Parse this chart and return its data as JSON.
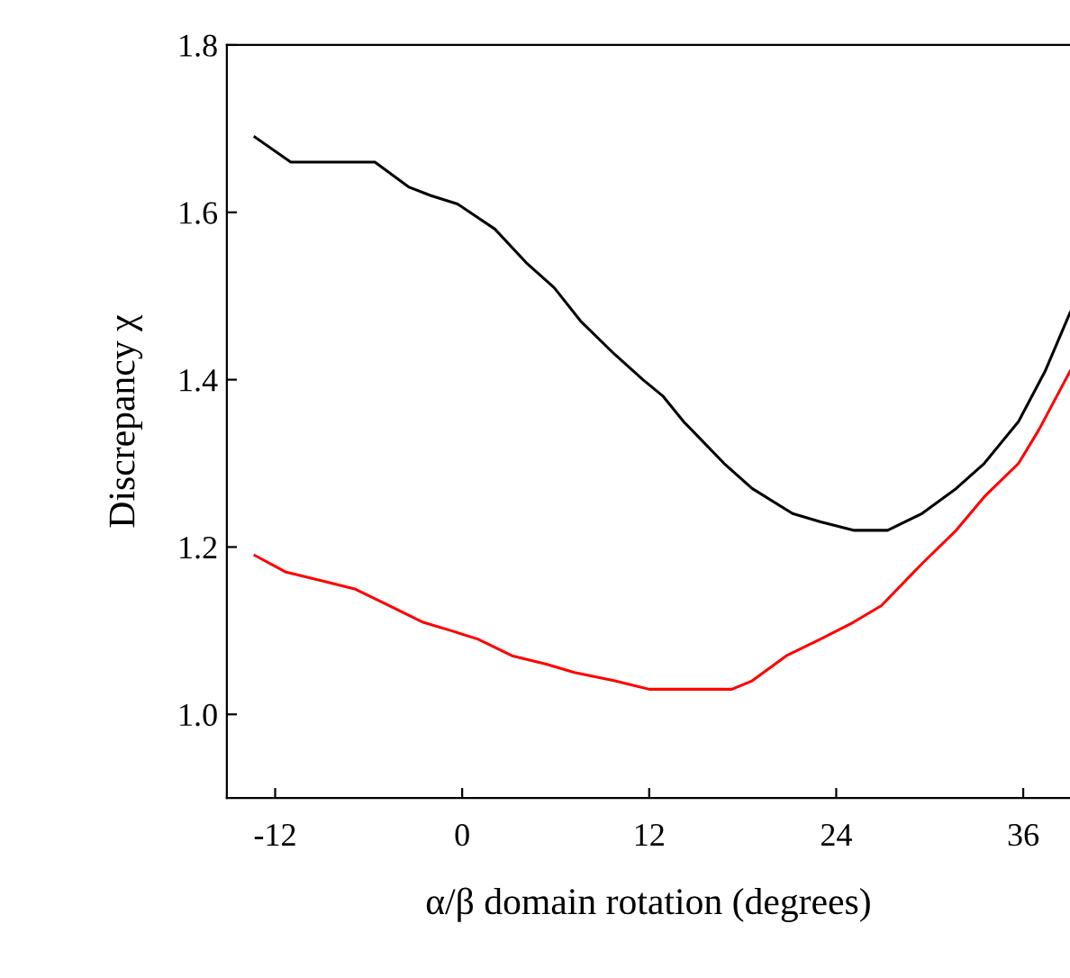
{
  "chart_data": {
    "type": "line",
    "xlabel": "α/β domain rotation (degrees)",
    "ylabel": "Discrepancy χ",
    "xlim": [
      -15.1,
      39
    ],
    "xticks": [
      {
        "value": -12,
        "label": "-12"
      },
      0,
      12,
      24,
      36
    ],
    "ylim": [
      0.9,
      1.8
    ],
    "yticks": [
      {
        "value": 1.0,
        "label": "1.0"
      },
      1.2,
      1.4,
      1.6,
      1.8
    ],
    "grid": false,
    "legend": false,
    "marker": "none",
    "line_style": "solid",
    "series": [
      {
        "color": "#000000",
        "x": [
          -13.3,
          -11.0,
          -6.9,
          -5.6,
          -3.4,
          -2.0,
          -0.3,
          2.1,
          4.1,
          5.9,
          7.6,
          9.8,
          11.6,
          12.9,
          14.2,
          16.8,
          18.6,
          21.2,
          23.0,
          25.1,
          27.3,
          29.5,
          31.7,
          33.5,
          35.7,
          37.4,
          39.0
        ],
        "values": [
          1.69,
          1.66,
          1.66,
          1.66,
          1.63,
          1.62,
          1.61,
          1.58,
          1.54,
          1.51,
          1.47,
          1.43,
          1.4,
          1.38,
          1.35,
          1.3,
          1.27,
          1.24,
          1.23,
          1.22,
          1.22,
          1.24,
          1.27,
          1.3,
          1.35,
          1.41,
          1.48
        ]
      },
      {
        "color": "#ff0000",
        "x": [
          -13.3,
          -11.3,
          -9.1,
          -6.9,
          -4.7,
          -2.5,
          -0.7,
          1.0,
          3.2,
          5.4,
          7.2,
          9.8,
          12.0,
          17.3,
          18.6,
          20.8,
          23.0,
          25.1,
          26.9,
          29.5,
          31.7,
          33.5,
          35.7,
          37.0,
          39.0
        ],
        "values": [
          1.19,
          1.17,
          1.16,
          1.15,
          1.13,
          1.11,
          1.1,
          1.09,
          1.07,
          1.06,
          1.05,
          1.04,
          1.03,
          1.03,
          1.04,
          1.07,
          1.09,
          1.11,
          1.13,
          1.18,
          1.22,
          1.26,
          1.3,
          1.34,
          1.41
        ]
      }
    ]
  }
}
